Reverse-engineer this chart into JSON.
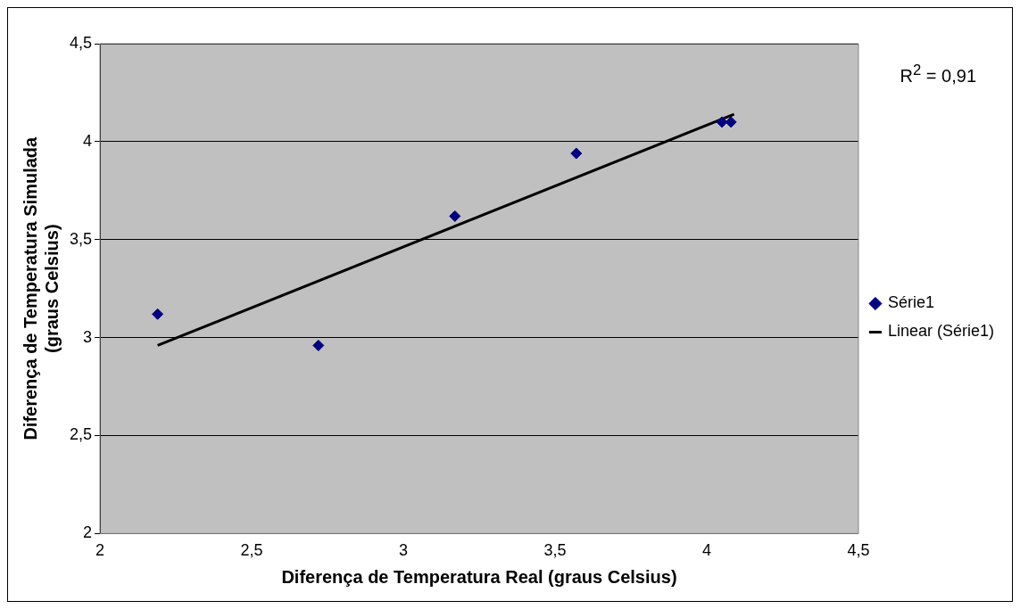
{
  "chart_data": {
    "type": "scatter",
    "xlabel": "Diferença de Temperatura Real (graus Celsius)",
    "ylabel": "Diferença de Temperatura Simulada\n(graus Celsius)",
    "annotations": [
      "R$^{2}$ = 0,91"
    ],
    "xlim": [
      2,
      4.5
    ],
    "xticks": [
      2,
      {
        "value": 2.5,
        "label": "2,5"
      },
      3,
      {
        "value": 3.5,
        "label": "3,5"
      },
      4,
      {
        "value": 4.5,
        "label": "4,5"
      }
    ],
    "ylim": [
      2,
      4.5
    ],
    "yticks": [
      2,
      {
        "value": 2.5,
        "label": "2,5"
      },
      3,
      {
        "value": 3.5,
        "label": "3,5"
      },
      4,
      {
        "value": 4.5,
        "label": "4,5"
      }
    ],
    "grid": "y",
    "legend": "right",
    "series": [
      {
        "name": "Série1",
        "color": "#000080",
        "marker": "diamond",
        "x": [
          2.19,
          2.72,
          3.17,
          3.57,
          4.05,
          4.08
        ],
        "values": [
          3.12,
          2.96,
          3.62,
          3.94,
          4.1,
          4.1
        ]
      },
      {
        "name": "Linear (Série1)",
        "type": "line",
        "color": "#000000",
        "marker": "none",
        "x": [
          2.19,
          4.09
        ],
        "values": [
          2.96,
          4.14
        ]
      }
    ]
  }
}
